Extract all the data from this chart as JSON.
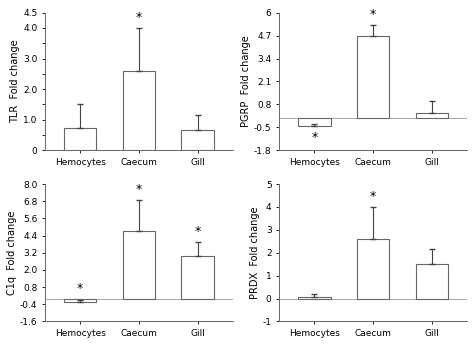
{
  "subplots": [
    {
      "ylabel": "TLR  Fold change",
      "categories": [
        "Hemocytes",
        "Caecum",
        "Gill"
      ],
      "values": [
        0.72,
        2.58,
        0.67
      ],
      "errors": [
        0.78,
        1.42,
        0.48
      ],
      "ylim": [
        0,
        4.5
      ],
      "yticks": [
        0,
        0.5,
        1.0,
        1.5,
        2.0,
        2.5,
        3.0,
        3.5,
        4.0,
        4.5
      ],
      "yticklabels": [
        "0",
        "",
        "1.0",
        "",
        "2.0",
        "",
        "3.0",
        "",
        "4.0",
        "4.5"
      ],
      "star": [
        false,
        true,
        false
      ],
      "star_above": [
        true,
        true,
        true
      ]
    },
    {
      "ylabel": "PGRP  Fold change",
      "categories": [
        "Hemocytes",
        "Caecum",
        "Gill"
      ],
      "values": [
        -0.42,
        4.65,
        0.28
      ],
      "errors": [
        0.08,
        0.65,
        0.72
      ],
      "ylim": [
        -1.8,
        6.0
      ],
      "yticks": [
        -1.8,
        -0.5,
        0.8,
        2.1,
        3.4,
        4.7,
        6.0
      ],
      "yticklabels": [
        "-1.8",
        "-0.5",
        "0.8",
        "2.1",
        "3.4",
        "4.7",
        "6"
      ],
      "star": [
        true,
        true,
        false
      ],
      "star_above": [
        false,
        true,
        true
      ]
    },
    {
      "ylabel": "C1q  Fold change",
      "categories": [
        "Hemocytes",
        "Caecum",
        "Gill"
      ],
      "values": [
        -0.22,
        4.7,
        3.0
      ],
      "errors": [
        0.15,
        2.2,
        0.95
      ],
      "ylim": [
        -1.6,
        8.0
      ],
      "yticks": [
        -1.6,
        -0.4,
        0.8,
        2.0,
        3.2,
        4.4,
        5.6,
        6.8,
        8.0
      ],
      "yticklabels": [
        "-1.6",
        "-0.4",
        "0.8",
        "2.0",
        "3.2",
        "4.4",
        "5.6",
        "6.8",
        "8.0"
      ],
      "star": [
        true,
        true,
        true
      ],
      "star_above": [
        true,
        true,
        true
      ]
    },
    {
      "ylabel": "PRDX  Fold change",
      "categories": [
        "Hemocytes",
        "Caecum",
        "Gill"
      ],
      "values": [
        0.08,
        2.6,
        1.5
      ],
      "errors": [
        0.12,
        1.4,
        0.65
      ],
      "ylim": [
        -1,
        5
      ],
      "yticks": [
        -1,
        0,
        1,
        2,
        3,
        4,
        5
      ],
      "yticklabels": [
        "-1",
        "0",
        "1",
        "2",
        "3",
        "4",
        "5"
      ],
      "star": [
        false,
        true,
        false
      ],
      "star_above": [
        true,
        true,
        true
      ]
    }
  ],
  "bar_color": "#ffffff",
  "bar_edgecolor": "#666666",
  "error_color": "#444444",
  "background_color": "#ffffff",
  "star_fontsize": 9,
  "label_fontsize": 7,
  "tick_fontsize": 6.5,
  "ylabel_fontsize": 7
}
